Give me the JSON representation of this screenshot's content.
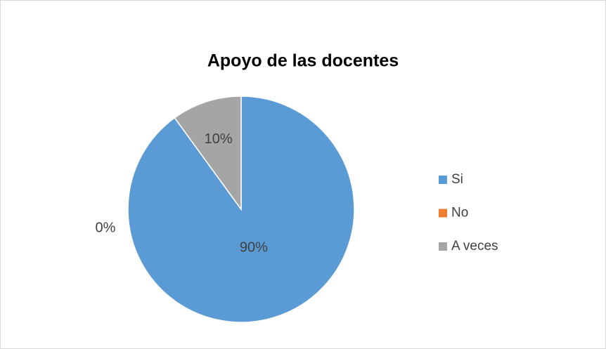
{
  "chart_data": {
    "type": "pie",
    "title": "Apoyo de las docentes",
    "categories": [
      "Si",
      "No",
      "A veces"
    ],
    "values": [
      90,
      0,
      10
    ],
    "value_labels": [
      "90%",
      "0%",
      "10%"
    ],
    "colors": [
      "#5b9bd5",
      "#ed7d31",
      "#a5a5a5"
    ],
    "legend": "right"
  }
}
